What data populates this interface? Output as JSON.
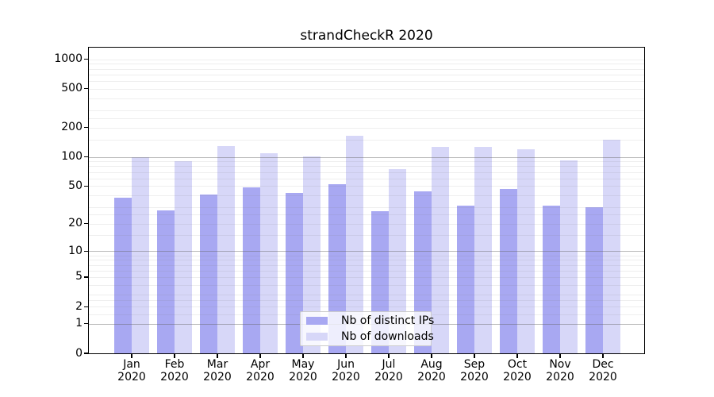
{
  "chart_data": {
    "type": "bar",
    "title": "strandCheckR 2020",
    "categories": [
      "Jan",
      "Feb",
      "Mar",
      "Apr",
      "May",
      "Jun",
      "Jul",
      "Aug",
      "Sep",
      "Oct",
      "Nov",
      "Dec"
    ],
    "category_year": "2020",
    "series": [
      {
        "name": "Nb of distinct IPs",
        "color": "#a8a8f2",
        "values": [
          38,
          28,
          41,
          48,
          42,
          52,
          27,
          44,
          31,
          47,
          31,
          30
        ]
      },
      {
        "name": "Nb of downloads",
        "color": "#d7d7f8",
        "values": [
          100,
          90,
          129,
          110,
          102,
          164,
          75,
          128,
          128,
          119,
          92,
          151
        ]
      }
    ],
    "xlabel": "",
    "ylabel": "",
    "yscale": "log1p",
    "ylim": [
      0,
      1380
    ],
    "ytick_labels": [
      0,
      1,
      2,
      5,
      10,
      20,
      50,
      100,
      200,
      500,
      1000
    ],
    "grid": true,
    "grid_major_values": [
      1,
      10,
      100
    ],
    "grid_minor_values": [
      1.5,
      2,
      2.5,
      3,
      4,
      5,
      6,
      7,
      8,
      9,
      15,
      20,
      25,
      30,
      40,
      50,
      60,
      70,
      80,
      90,
      150,
      200,
      250,
      300,
      400,
      500,
      600,
      700,
      800,
      900,
      1000
    ],
    "legend_position": "lower-center",
    "legend_entries": [
      "Nb of distinct IPs",
      "Nb of downloads"
    ]
  },
  "colors": {
    "bar_ips": "#a8a8f2",
    "bar_downloads": "#d7d7f8",
    "grid_major": "rgba(100,100,100,0.45)",
    "grid_minor": "rgba(120,120,120,0.13)",
    "axis": "#000000",
    "text": "#000000",
    "legend_border": "#cccccc",
    "legend_bg": "rgba(255,255,255,0.8)"
  }
}
